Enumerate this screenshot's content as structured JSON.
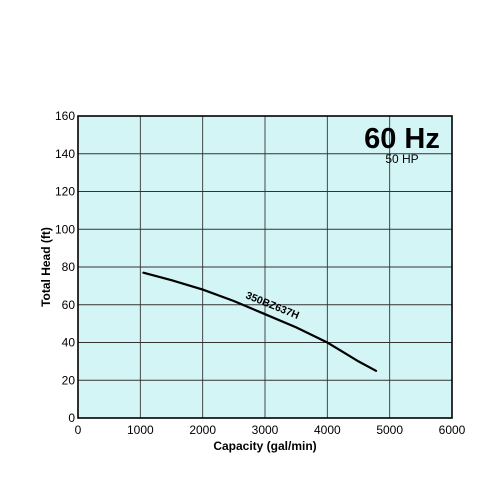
{
  "chart_data": {
    "type": "line",
    "frequency_label": "60 Hz",
    "power_label": "50 HP",
    "xlabel": "Capacity (gal/min)",
    "ylabel": "Total Head (ft)",
    "xlim": [
      0,
      6000
    ],
    "ylim": [
      0,
      160
    ],
    "x_ticks": [
      "0",
      "1000",
      "2000",
      "3000",
      "4000",
      "5000",
      "6000"
    ],
    "y_ticks": [
      "0",
      "20",
      "40",
      "60",
      "80",
      "100",
      "120",
      "140",
      "160"
    ],
    "grid": true,
    "background_color": "#d4f5f5",
    "series": [
      {
        "name": "350BZ637H",
        "x": [
          1050,
          1500,
          2000,
          2500,
          3000,
          3500,
          4000,
          4300,
          4500,
          4780
        ],
        "y": [
          77,
          73,
          68,
          62,
          55,
          48,
          40,
          34,
          30,
          25
        ]
      }
    ]
  }
}
